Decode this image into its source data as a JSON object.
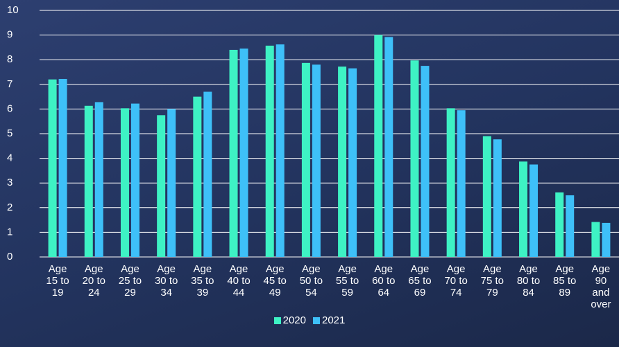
{
  "chart_data": {
    "type": "bar",
    "categories": [
      "Age 15 to 19",
      "Age 20 to 24",
      "Age 25 to 29",
      "Age 30 to 34",
      "Age 35 to 39",
      "Age 40 to 44",
      "Age 45 to 49",
      "Age 50 to 54",
      "Age 55 to 59",
      "Age 60 to 64",
      "Age 65 to 69",
      "Age 70 to 74",
      "Age 75 to 79",
      "Age 80 to 84",
      "Age 85 to 89",
      "Age 90 and over"
    ],
    "series": [
      {
        "name": "2020",
        "color": "#3ef2c4",
        "values": [
          7.2,
          6.13,
          6.03,
          5.75,
          6.5,
          8.4,
          8.57,
          7.87,
          7.72,
          9.0,
          7.97,
          6.03,
          4.9,
          3.87,
          2.62,
          1.42
        ]
      },
      {
        "name": "2021",
        "color": "#3ec0f8",
        "values": [
          7.22,
          6.28,
          6.22,
          6.0,
          6.7,
          8.45,
          8.62,
          7.8,
          7.65,
          8.92,
          7.75,
          5.95,
          4.77,
          3.75,
          2.5,
          1.38
        ]
      }
    ],
    "ylim": [
      0,
      10
    ],
    "yticks": [
      0,
      1,
      2,
      3,
      4,
      5,
      6,
      7,
      8,
      9,
      10
    ],
    "grid": true,
    "legend": "bottom"
  }
}
